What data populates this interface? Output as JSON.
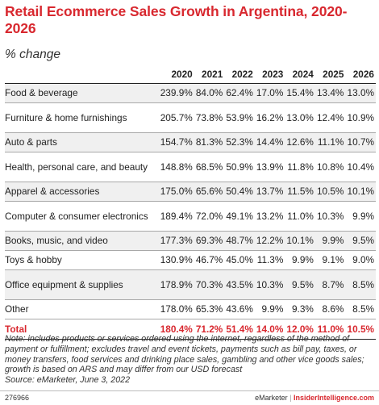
{
  "chart_data": {
    "type": "table",
    "title": "Retail Ecommerce Sales Growth in Argentina, 2020-2026",
    "subtitle": "% change",
    "columns": [
      "2020",
      "2021",
      "2022",
      "2023",
      "2024",
      "2025",
      "2026"
    ],
    "rows": [
      {
        "category": "Food & beverage",
        "values": [
          "239.9%",
          "84.0%",
          "62.4%",
          "17.0%",
          "15.4%",
          "13.4%",
          "13.0%"
        ]
      },
      {
        "category": "Furniture & home furnishings",
        "values": [
          "205.7%",
          "73.8%",
          "53.9%",
          "16.2%",
          "13.0%",
          "12.4%",
          "10.9%"
        ]
      },
      {
        "category": "Auto & parts",
        "values": [
          "154.7%",
          "81.3%",
          "52.3%",
          "14.4%",
          "12.6%",
          "11.1%",
          "10.7%"
        ]
      },
      {
        "category": "Health, personal care, and beauty",
        "values": [
          "148.8%",
          "68.5%",
          "50.9%",
          "13.9%",
          "11.8%",
          "10.8%",
          "10.4%"
        ]
      },
      {
        "category": "Apparel & accessories",
        "values": [
          "175.0%",
          "65.6%",
          "50.4%",
          "13.7%",
          "11.5%",
          "10.5%",
          "10.1%"
        ]
      },
      {
        "category": "Computer & consumer electronics",
        "values": [
          "189.4%",
          "72.0%",
          "49.1%",
          "13.2%",
          "11.0%",
          "10.3%",
          "9.9%"
        ]
      },
      {
        "category": "Books, music, and video",
        "values": [
          "177.3%",
          "69.3%",
          "48.7%",
          "12.2%",
          "10.1%",
          "9.9%",
          "9.5%"
        ]
      },
      {
        "category": "Toys & hobby",
        "values": [
          "130.9%",
          "46.7%",
          "45.0%",
          "11.3%",
          "9.9%",
          "9.1%",
          "9.0%"
        ]
      },
      {
        "category": "Office equipment & supplies",
        "values": [
          "178.9%",
          "70.3%",
          "43.5%",
          "10.3%",
          "9.5%",
          "8.7%",
          "8.5%"
        ]
      },
      {
        "category": "Other",
        "values": [
          "178.0%",
          "65.3%",
          "43.6%",
          "9.9%",
          "9.3%",
          "8.6%",
          "8.5%"
        ]
      }
    ],
    "total": {
      "category": "Total",
      "values": [
        "180.4%",
        "71.2%",
        "51.4%",
        "14.0%",
        "12.0%",
        "11.0%",
        "10.5%"
      ]
    }
  },
  "note": "Note: includes products or services ordered using the internet, regardless of the method of payment or fulfillment; excludes travel and event tickets, payments such as bill pay, taxes, or money transfers, food services and drinking place sales, gambling and other vice goods sales; growth is based on ARS and may differ from our USD forecast",
  "source": "Source: eMarketer, June 3, 2022",
  "footer": {
    "id": "276966",
    "brand": "eMarketer",
    "separator": "|",
    "site": "InsiderIntelligence.com"
  },
  "colors": {
    "accent": "#d8282f",
    "row_shade": "#f0f0f0",
    "text": "#222222"
  }
}
